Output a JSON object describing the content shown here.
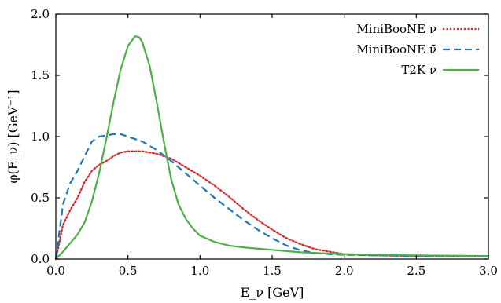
{
  "chart_data": {
    "type": "line",
    "title": "",
    "xlabel": "E_ν [GeV]",
    "ylabel": "φ(E_ν) [GeV⁻¹]",
    "xlim": [
      0.0,
      3.0
    ],
    "ylim": [
      0.0,
      2.0
    ],
    "x_ticks": [
      "0.0",
      "0.5",
      "1.0",
      "1.5",
      "2.0",
      "2.5",
      "3.0"
    ],
    "y_ticks": [
      "0.0",
      "0.5",
      "1.0",
      "1.5",
      "2.0"
    ],
    "grid": false,
    "legend_position": "top-right",
    "series": [
      {
        "name": "MiniBooNE ν",
        "color": "#d62728",
        "style": "dotted",
        "x": [
          0.0,
          0.05,
          0.1,
          0.15,
          0.2,
          0.25,
          0.3,
          0.35,
          0.4,
          0.45,
          0.5,
          0.55,
          0.6,
          0.65,
          0.7,
          0.8,
          0.9,
          1.0,
          1.1,
          1.2,
          1.3,
          1.4,
          1.5,
          1.6,
          1.7,
          1.8,
          1.9,
          2.0,
          2.2,
          2.5,
          3.0
        ],
        "y": [
          0.0,
          0.28,
          0.4,
          0.5,
          0.63,
          0.72,
          0.77,
          0.8,
          0.84,
          0.87,
          0.88,
          0.88,
          0.88,
          0.87,
          0.86,
          0.82,
          0.75,
          0.68,
          0.6,
          0.51,
          0.41,
          0.32,
          0.24,
          0.17,
          0.12,
          0.08,
          0.06,
          0.04,
          0.03,
          0.025,
          0.02
        ]
      },
      {
        "name": "MiniBooNE ν̄",
        "color": "#1f77b4",
        "style": "dashed",
        "x": [
          0.0,
          0.05,
          0.1,
          0.15,
          0.2,
          0.25,
          0.3,
          0.35,
          0.4,
          0.45,
          0.5,
          0.6,
          0.7,
          0.8,
          0.9,
          1.0,
          1.1,
          1.2,
          1.3,
          1.4,
          1.5,
          1.6,
          1.7,
          1.8,
          1.9,
          2.0,
          2.2,
          2.5,
          3.0
        ],
        "y": [
          0.0,
          0.45,
          0.62,
          0.72,
          0.84,
          0.96,
          1.0,
          1.01,
          1.02,
          1.02,
          1.0,
          0.96,
          0.89,
          0.8,
          0.7,
          0.6,
          0.5,
          0.41,
          0.32,
          0.24,
          0.17,
          0.11,
          0.07,
          0.05,
          0.04,
          0.035,
          0.03,
          0.025,
          0.02
        ]
      },
      {
        "name": "T2K ν",
        "color": "#4daf4a",
        "style": "solid",
        "x": [
          0.0,
          0.05,
          0.1,
          0.15,
          0.2,
          0.25,
          0.3,
          0.35,
          0.4,
          0.45,
          0.5,
          0.55,
          0.58,
          0.6,
          0.65,
          0.7,
          0.75,
          0.8,
          0.85,
          0.9,
          0.95,
          1.0,
          1.1,
          1.2,
          1.3,
          1.4,
          1.5,
          1.7,
          2.0,
          2.5,
          3.0
        ],
        "y": [
          0.0,
          0.06,
          0.13,
          0.2,
          0.3,
          0.47,
          0.7,
          0.98,
          1.28,
          1.55,
          1.74,
          1.82,
          1.81,
          1.77,
          1.58,
          1.28,
          0.95,
          0.65,
          0.45,
          0.33,
          0.25,
          0.19,
          0.14,
          0.11,
          0.095,
          0.085,
          0.075,
          0.055,
          0.04,
          0.03,
          0.025
        ]
      }
    ]
  }
}
